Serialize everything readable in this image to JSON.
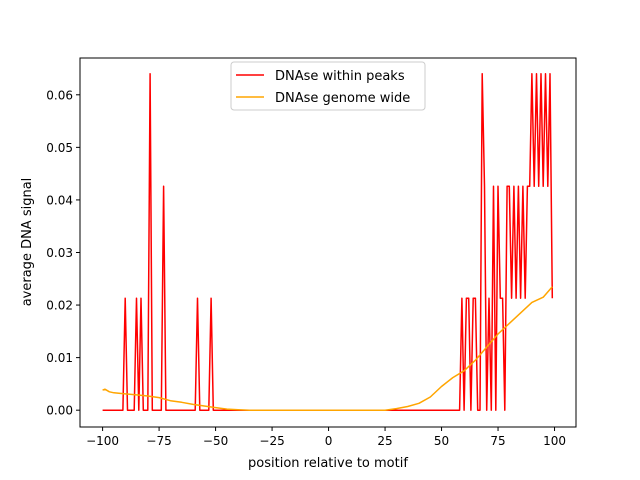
{
  "chart_data": {
    "type": "line",
    "title": "",
    "xlabel": "position relative to motif",
    "ylabel": "average DNA signal",
    "xlim": [
      -110,
      109.5
    ],
    "ylim": [
      -0.0032,
      0.067
    ],
    "xticks": [
      -100,
      -75,
      -50,
      -25,
      0,
      25,
      50,
      75,
      100
    ],
    "xtick_labels": [
      "−100",
      "−75",
      "−50",
      "−25",
      "0",
      "25",
      "50",
      "75",
      "100"
    ],
    "yticks": [
      0,
      0.01,
      0.02,
      0.03,
      0.04,
      0.05,
      0.06
    ],
    "ytick_labels": [
      "0.00",
      "0.01",
      "0.02",
      "0.03",
      "0.04",
      "0.05",
      "0.06"
    ],
    "legend_placement": "upper-center",
    "grid": false,
    "series": [
      {
        "name": "DNAse within peaks",
        "color": "#ff0000",
        "x_range": [
          -100,
          99
        ],
        "default_value": 0,
        "nonzero_points": [
          [
            -90,
            0.0213
          ],
          [
            -85,
            0.0213
          ],
          [
            -83,
            0.0213
          ],
          [
            -79,
            0.064
          ],
          [
            -73,
            0.0426
          ],
          [
            -58,
            0.0213
          ],
          [
            -52,
            0.0213
          ],
          [
            59,
            0.0213
          ],
          [
            61,
            0.0213
          ],
          [
            62,
            0.0213
          ],
          [
            64,
            0.0213
          ],
          [
            65,
            0.0213
          ],
          [
            68,
            0.064
          ],
          [
            69,
            0.0426
          ],
          [
            71,
            0.0213
          ],
          [
            73,
            0.0426
          ],
          [
            75,
            0.0426
          ],
          [
            76,
            0.0213
          ],
          [
            77,
            0.0213
          ],
          [
            79,
            0.0426
          ],
          [
            80,
            0.0426
          ],
          [
            81,
            0.0213
          ],
          [
            82,
            0.0426
          ],
          [
            83,
            0.0213
          ],
          [
            84,
            0.0426
          ],
          [
            85,
            0.0213
          ],
          [
            86,
            0.0426
          ],
          [
            87,
            0.0213
          ],
          [
            88,
            0.0426
          ],
          [
            89,
            0.0426
          ],
          [
            90,
            0.064
          ],
          [
            91,
            0.0426
          ],
          [
            92,
            0.064
          ],
          [
            93,
            0.0426
          ],
          [
            94,
            0.064
          ],
          [
            95,
            0.0426
          ],
          [
            96,
            0.064
          ],
          [
            97,
            0.0426
          ],
          [
            98,
            0.064
          ],
          [
            99,
            0.0213
          ]
        ]
      },
      {
        "name": "DNAse genome wide",
        "color": "#ffa500",
        "points": [
          [
            -100,
            0.0038
          ],
          [
            -99,
            0.004
          ],
          [
            -97,
            0.0035
          ],
          [
            -95,
            0.0033
          ],
          [
            -90,
            0.0031
          ],
          [
            -85,
            0.0029
          ],
          [
            -80,
            0.0027
          ],
          [
            -75,
            0.0024
          ],
          [
            -70,
            0.0018
          ],
          [
            -65,
            0.0015
          ],
          [
            -60,
            0.0011
          ],
          [
            -55,
            0.0008
          ],
          [
            -50,
            0.0005
          ],
          [
            -45,
            0.0002
          ],
          [
            -40,
            0.0001
          ],
          [
            -35,
            0
          ],
          [
            25,
            0
          ],
          [
            30,
            0.0003
          ],
          [
            35,
            0.0007
          ],
          [
            40,
            0.0013
          ],
          [
            45,
            0.0025
          ],
          [
            50,
            0.0045
          ],
          [
            55,
            0.0062
          ],
          [
            60,
            0.0075
          ],
          [
            65,
            0.0095
          ],
          [
            70,
            0.012
          ],
          [
            75,
            0.0145
          ],
          [
            80,
            0.0165
          ],
          [
            85,
            0.0185
          ],
          [
            90,
            0.0205
          ],
          [
            95,
            0.0215
          ],
          [
            99,
            0.0235
          ]
        ]
      }
    ]
  }
}
